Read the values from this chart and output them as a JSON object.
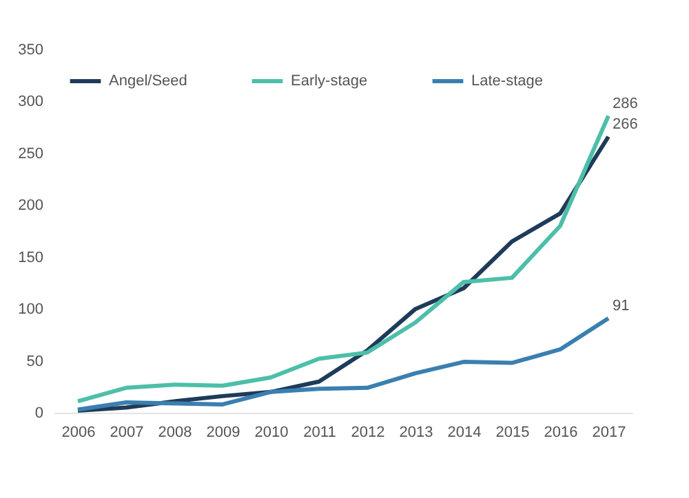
{
  "chart_data": {
    "type": "line",
    "categories": [
      "2006",
      "2007",
      "2008",
      "2009",
      "2010",
      "2011",
      "2012",
      "2013",
      "2014",
      "2015",
      "2016",
      "2017"
    ],
    "series": [
      {
        "name": "Angel/Seed",
        "color": "#1f3b5a",
        "values": [
          2,
          5,
          11,
          16,
          20,
          30,
          60,
          100,
          120,
          165,
          192,
          266
        ],
        "value_labels": [
          null,
          null,
          null,
          null,
          null,
          null,
          null,
          null,
          null,
          null,
          null,
          "266"
        ]
      },
      {
        "name": "Early-stage",
        "color": "#4dbfa8",
        "values": [
          11,
          24,
          27,
          26,
          34,
          52,
          58,
          87,
          126,
          130,
          180,
          286
        ],
        "value_labels": [
          null,
          null,
          null,
          null,
          null,
          null,
          null,
          null,
          null,
          null,
          null,
          "286"
        ]
      },
      {
        "name": "Late-stage",
        "color": "#3a7fb0",
        "values": [
          3,
          10,
          9,
          8,
          20,
          23,
          24,
          38,
          49,
          48,
          61,
          91
        ],
        "value_labels": [
          null,
          null,
          null,
          null,
          null,
          null,
          null,
          null,
          null,
          null,
          null,
          "91"
        ]
      }
    ],
    "ylim": [
      0,
      350
    ],
    "yticks": [
      0,
      50,
      100,
      150,
      200,
      250,
      300,
      350
    ],
    "legend": "top left",
    "marker": "none",
    "line_style": "solid"
  }
}
